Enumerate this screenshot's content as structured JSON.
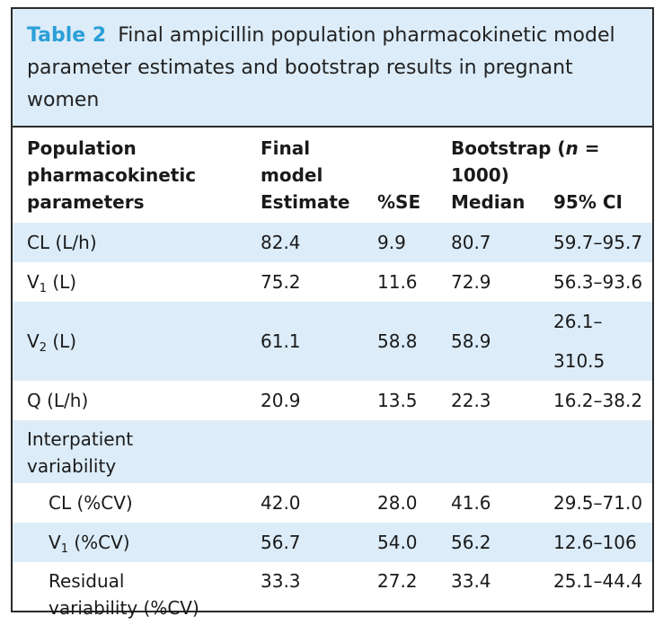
{
  "caption": {
    "label": "Table 2",
    "text": "Final ampicillin population pharmacokinetic model parameter estimates and bootstrap results in pregnant women"
  },
  "header": {
    "col1_line1": "Population",
    "col1_line2": "pharmacokinetic",
    "col1_line3": "parameters",
    "final_line1": "Final",
    "final_line2": "model",
    "bootstrap_prefix": "Bootstrap (",
    "bootstrap_n": "n",
    "bootstrap_suffix": " = 1000)",
    "estimate": "Estimate",
    "se": "%SE",
    "median": "Median",
    "ci": "95% CI"
  },
  "rows": [
    {
      "param": "CL (L/h)",
      "estimate": "82.4",
      "se": "9.9",
      "median": "80.7",
      "ci": "59.7–95.7"
    },
    {
      "param_base": "V",
      "param_sub": "1",
      "param_tail": " (L)",
      "estimate": "75.2",
      "se": "11.6",
      "median": "72.9",
      "ci": "56.3–93.6"
    },
    {
      "param_base": "V",
      "param_sub": "2",
      "param_tail": " (L)",
      "estimate": "61.1",
      "se": "58.8",
      "median": "58.9",
      "ci": "26.1–310.5"
    },
    {
      "param": "Q (L/h)",
      "estimate": "20.9",
      "se": "13.5",
      "median": "22.3",
      "ci": "16.2–38.2"
    }
  ],
  "section": {
    "line1": "Interpatient",
    "line2": "variability"
  },
  "subrows": [
    {
      "param": "CL (%CV)",
      "estimate": "42.0",
      "se": "28.0",
      "median": "41.6",
      "ci": "29.5–71.0"
    },
    {
      "param_base": "V",
      "param_sub": "1",
      "param_tail": " (%CV)",
      "estimate": "56.7",
      "se": "54.0",
      "median": "56.2",
      "ci": "12.6–106"
    }
  ],
  "residual": {
    "line1": "Residual",
    "line2": "variability (%CV)",
    "estimate": "33.3",
    "se": "27.2",
    "median": "33.4",
    "ci": "25.1–44.4"
  }
}
